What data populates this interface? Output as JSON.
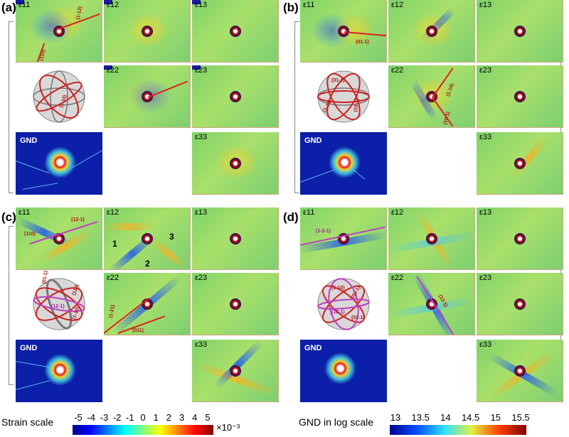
{
  "panels": {
    "a": {
      "label": "(a)"
    },
    "b": {
      "label": "(b)"
    },
    "c": {
      "label": "(c)"
    },
    "d": {
      "label": "(d)"
    }
  },
  "component_labels": {
    "e11": "ε11",
    "e12": "ε12",
    "e13": "ε13",
    "e22": "ε22",
    "e23": "ε23",
    "e33": "ε33"
  },
  "gnd_label": "GND",
  "trace_labels": {
    "a": [
      "(1-12)",
      "(110)",
      "(1-10)"
    ],
    "b": [
      "(01-1)",
      "(01-1)",
      "(1-10)",
      "(10-1)",
      "(1-10)",
      "(10-1)"
    ],
    "c": [
      "(12-1)",
      "(110)",
      "(1-21)",
      "(011)",
      "(01-1)",
      "(110)",
      "(1-21)",
      "(0-11)",
      "(12-1)",
      "(1-10)"
    ],
    "d": [
      "(1-2-1)",
      "(12-1)",
      "(1-10)",
      "(01-1)",
      "(01-1)",
      "(12-1)",
      "(01-1)"
    ]
  },
  "arrow_labels": [
    "1",
    "2",
    "3"
  ],
  "strain_scale": {
    "title": "Strain scale",
    "ticks": [
      "-5",
      "-4",
      "-3",
      "-2",
      "-1",
      "0",
      "1",
      "2",
      "3",
      "4",
      "5"
    ],
    "multiplier": "×10⁻³"
  },
  "gnd_scale": {
    "title": "GND in log scale",
    "ticks": [
      "13",
      "13.5",
      "14",
      "14.5",
      "15",
      "15.5"
    ]
  },
  "colors": {
    "strain_colormap": [
      "#00008f",
      "#0000ff",
      "#0080ff",
      "#00ffff",
      "#80ff80",
      "#ffff00",
      "#ff8000",
      "#ff0000",
      "#800000"
    ],
    "gnd_colormap": [
      "#00008f",
      "#0050ff",
      "#30e0ff",
      "#e0f040",
      "#ff4000",
      "#800000"
    ],
    "trace_red": "#d22222",
    "trace_magenta": "#c040c0"
  }
}
